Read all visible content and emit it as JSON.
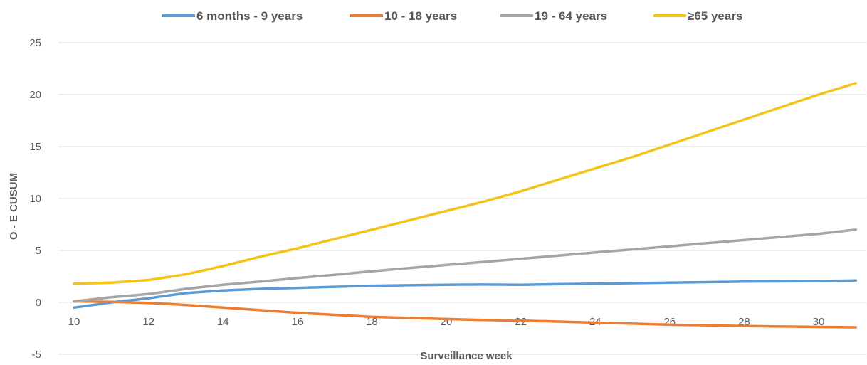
{
  "chart_data": {
    "type": "line",
    "title": "",
    "xlabel": "Surveillance week",
    "ylabel": "O - E CUSUM",
    "xlim": [
      10,
      31
    ],
    "ylim": [
      -5,
      25
    ],
    "x_ticks": [
      10,
      12,
      14,
      16,
      18,
      20,
      22,
      24,
      26,
      28,
      30
    ],
    "y_ticks": [
      -5,
      0,
      5,
      10,
      15,
      20,
      25
    ],
    "grid": "horizontal",
    "legend_position": "top",
    "x": [
      10,
      11,
      12,
      13,
      14,
      15,
      16,
      17,
      18,
      19,
      20,
      21,
      22,
      23,
      24,
      25,
      26,
      27,
      28,
      29,
      30,
      31
    ],
    "series": [
      {
        "name": "6 months - 9 years",
        "color": "#5b9bd5",
        "values": [
          -0.5,
          0.0,
          0.4,
          0.9,
          1.15,
          1.3,
          1.4,
          1.5,
          1.6,
          1.65,
          1.7,
          1.72,
          1.7,
          1.75,
          1.8,
          1.85,
          1.9,
          1.95,
          2.0,
          2.02,
          2.05,
          2.1
        ]
      },
      {
        "name": "10 - 18 years",
        "color": "#ed7d31",
        "values": [
          0.1,
          0.05,
          -0.05,
          -0.25,
          -0.5,
          -0.75,
          -1.0,
          -1.2,
          -1.4,
          -1.5,
          -1.6,
          -1.7,
          -1.75,
          -1.85,
          -1.95,
          -2.05,
          -2.15,
          -2.2,
          -2.28,
          -2.32,
          -2.36,
          -2.4
        ]
      },
      {
        "name": "19 - 64 years",
        "color": "#a5a5a5",
        "values": [
          0.1,
          0.5,
          0.8,
          1.3,
          1.7,
          2.0,
          2.35,
          2.65,
          3.0,
          3.3,
          3.6,
          3.9,
          4.2,
          4.5,
          4.8,
          5.1,
          5.4,
          5.7,
          6.0,
          6.3,
          6.6,
          7.0
        ]
      },
      {
        "name": "≥65 years",
        "color": "#f5c216",
        "values": [
          1.8,
          1.9,
          2.15,
          2.7,
          3.5,
          4.4,
          5.2,
          6.1,
          7.0,
          7.9,
          8.8,
          9.7,
          10.7,
          11.8,
          12.9,
          14.0,
          15.2,
          16.4,
          17.6,
          18.8,
          20.0,
          21.1
        ]
      }
    ]
  }
}
